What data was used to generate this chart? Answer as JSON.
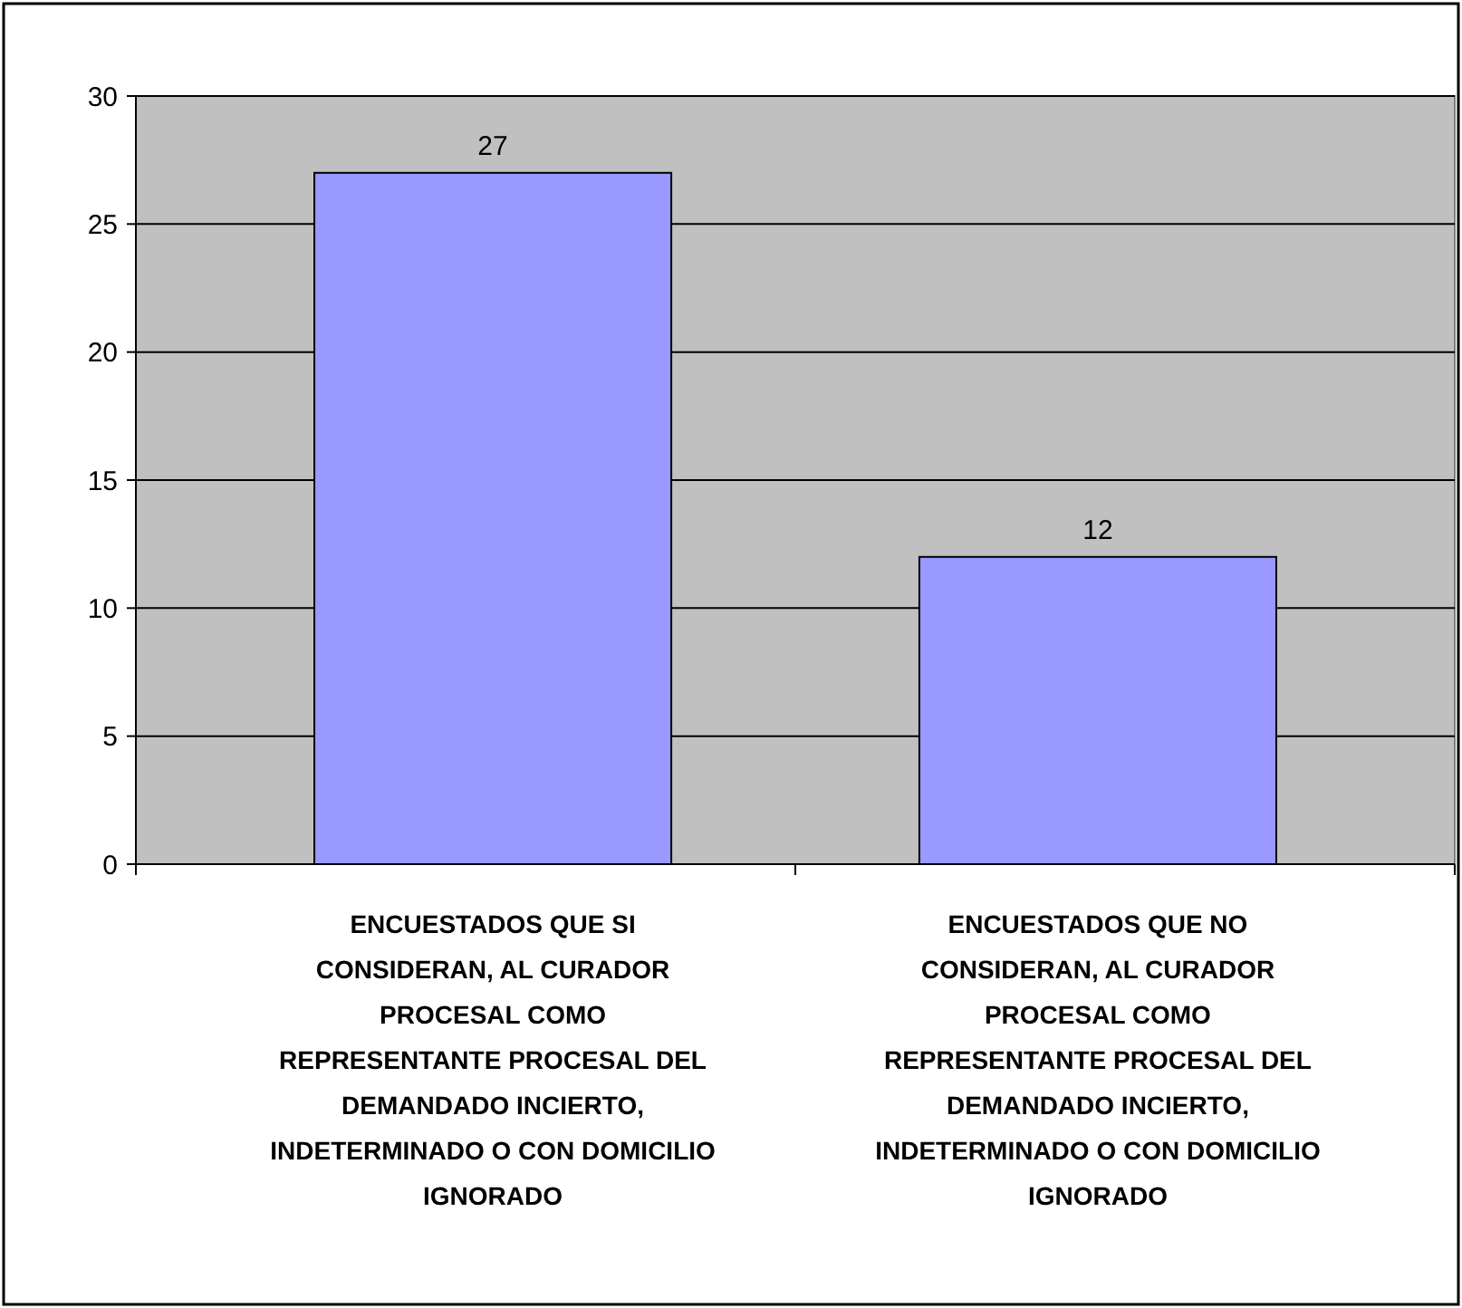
{
  "chart_data": {
    "type": "bar",
    "categories": [
      "ENCUESTADOS QUE SI CONSIDERAN, AL CURADOR PROCESAL COMO REPRESENTANTE PROCESAL DEL DEMANDADO INCIERTO, INDETERMINADO O CON DOMICILIO IGNORADO",
      "ENCUESTADOS QUE NO CONSIDERAN, AL CURADOR PROCESAL COMO REPRESENTANTE PROCESAL DEL DEMANDADO INCIERTO, INDETERMINADO O CON DOMICILIO IGNORADO"
    ],
    "values": [
      27,
      12
    ],
    "color": "#9999ff",
    "ylim": [
      0,
      30
    ],
    "yticks": [
      0,
      5,
      10,
      15,
      20,
      25,
      30
    ],
    "grid": "y",
    "data_labels": true
  }
}
